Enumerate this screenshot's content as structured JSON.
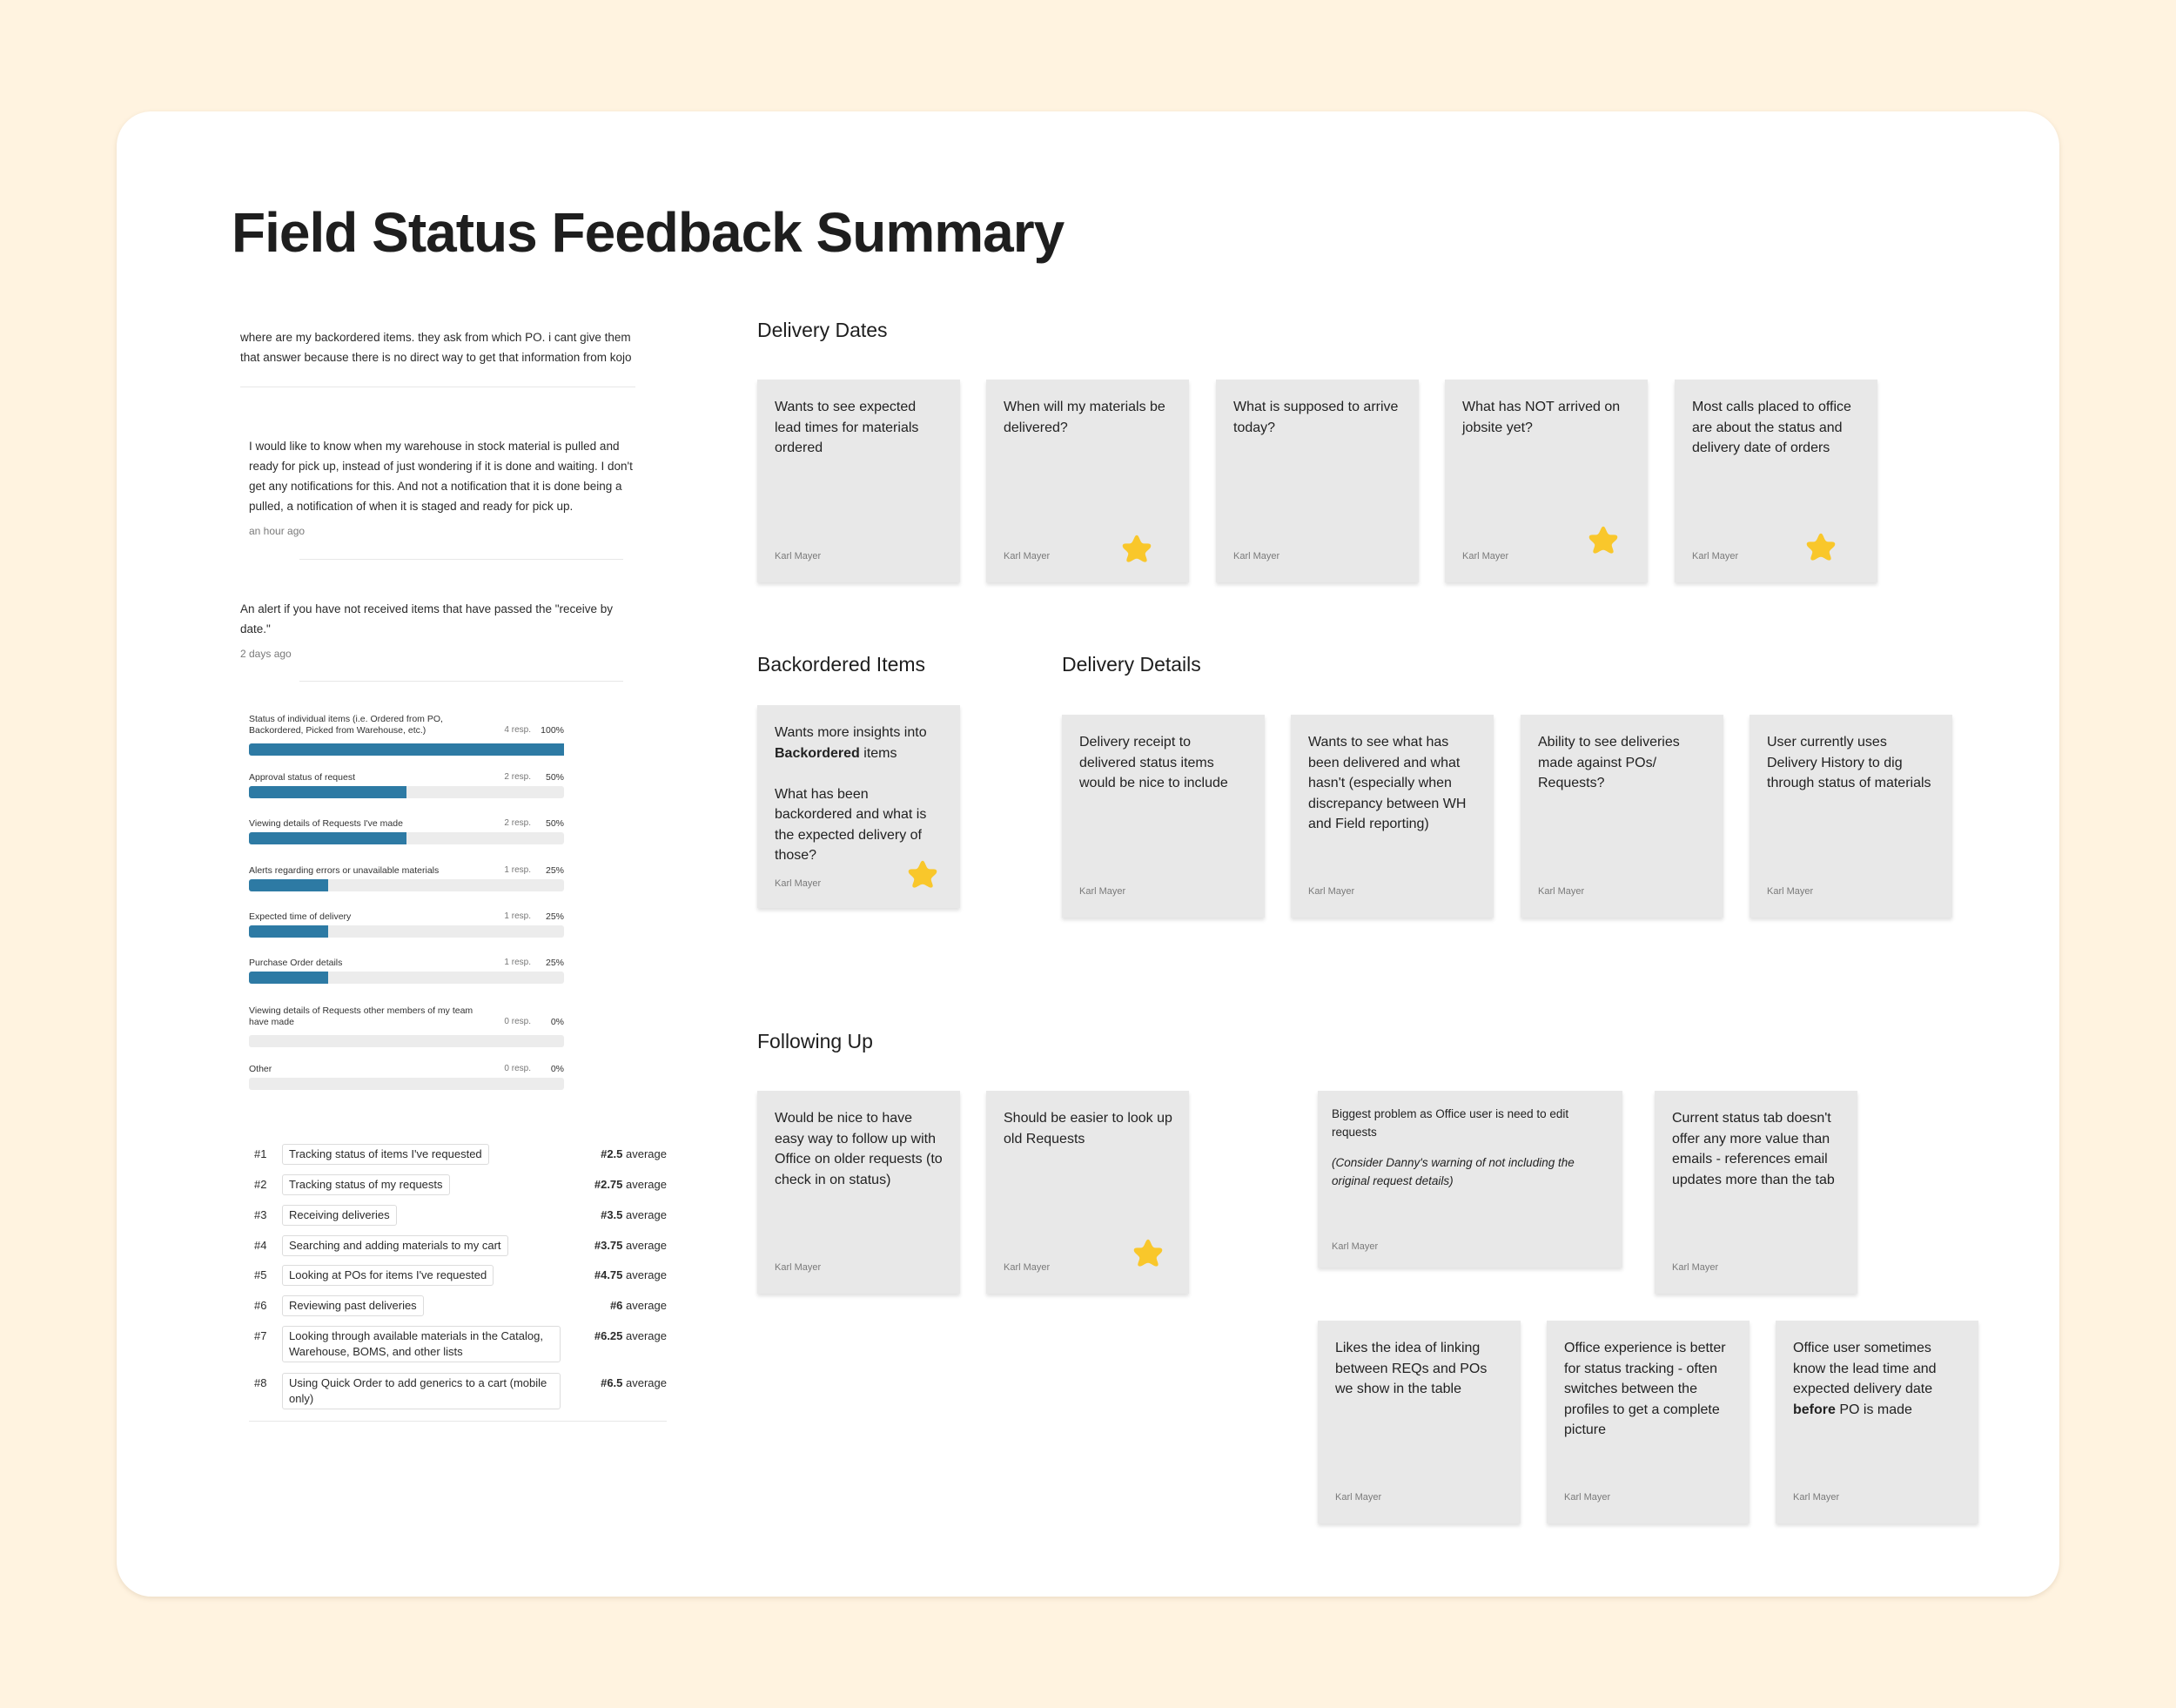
{
  "title": "Field Status Feedback Summary",
  "comments": [
    {
      "text": "where are my backordered items. they ask from which PO. i cant give them that answer because there is no direct way to get that information from kojo",
      "time": ""
    },
    {
      "text": "I would like to know when my warehouse in stock material is pulled and ready for pick up, instead of just wondering if it is done and waiting. I don't get any notifications for this. And not a notification that it is done being a pulled, a notification of when it is staged and ready for pick up.",
      "time": "an hour ago"
    },
    {
      "text": "An alert if you have not received items that have passed the \"receive by date.\"",
      "time": "2 days ago"
    }
  ],
  "poll": [
    {
      "label": "Status of individual items (i.e. Ordered from PO, Backordered, Picked from Warehouse, etc.)",
      "resp": "4 resp.",
      "pct": "100%",
      "value": 1.0
    },
    {
      "label": "Approval status of request",
      "resp": "2 resp.",
      "pct": "50%",
      "value": 0.5
    },
    {
      "label": "Viewing details of Requests I've made",
      "resp": "2 resp.",
      "pct": "50%",
      "value": 0.5
    },
    {
      "label": "Alerts regarding errors or unavailable materials",
      "resp": "1 resp.",
      "pct": "25%",
      "value": 0.25
    },
    {
      "label": "Expected time of delivery",
      "resp": "1 resp.",
      "pct": "25%",
      "value": 0.25
    },
    {
      "label": "Purchase Order details",
      "resp": "1 resp.",
      "pct": "25%",
      "value": 0.25
    },
    {
      "label": "Viewing details of Requests other members of my team have made",
      "resp": "0 resp.",
      "pct": "0%",
      "value": 0
    },
    {
      "label": "Other",
      "resp": "0 resp.",
      "pct": "0%",
      "value": 0
    }
  ],
  "ranking": [
    {
      "num": "#1",
      "label": "Tracking status of items I've requested",
      "avg": "#2.5",
      "suffix": " average"
    },
    {
      "num": "#2",
      "label": "Tracking status of my requests",
      "avg": "#2.75",
      "suffix": " average"
    },
    {
      "num": "#3",
      "label": "Receiving deliveries",
      "avg": "#3.5",
      "suffix": " average"
    },
    {
      "num": "#4",
      "label": "Searching and adding materials to my cart",
      "avg": "#3.75",
      "suffix": " average"
    },
    {
      "num": "#5",
      "label": "Looking at POs for items I've requested",
      "avg": "#4.75",
      "suffix": " average"
    },
    {
      "num": "#6",
      "label": "Reviewing past deliveries",
      "avg": "#6",
      "suffix": " average"
    },
    {
      "num": "#7",
      "label": "Looking through available materials in the Catalog, Warehouse, BOMS, and other lists",
      "avg": "#6.25",
      "suffix": " average"
    },
    {
      "num": "#8",
      "label": "Using Quick Order to add generics to a cart (mobile only)",
      "avg": "#6.5",
      "suffix": " average"
    }
  ],
  "sections": {
    "delivery_dates": "Delivery Dates",
    "backordered": "Backordered Items",
    "delivery_details": "Delivery Details",
    "following_up": "Following Up"
  },
  "notes": {
    "dd1": {
      "text": "Wants to see expected lead times for materials ordered",
      "author": "Karl Mayer"
    },
    "dd2": {
      "text": "When will my materials be delivered?",
      "author": "Karl Mayer"
    },
    "dd3": {
      "text": "What is supposed to arrive today?",
      "author": "Karl Mayer"
    },
    "dd4": {
      "text": "What has NOT arrived on jobsite yet?",
      "author": "Karl Mayer"
    },
    "dd5": {
      "text": "Most calls placed to office are about the status and delivery date of orders",
      "author": "Karl Mayer"
    },
    "bo1": {
      "text_a": "Wants more insights into ",
      "bold": "Backordered",
      "text_b": " items",
      "text_c": "What has been backordered and what is the expected delivery of those?",
      "author": "Karl Mayer"
    },
    "det1": {
      "text": "Delivery receipt to delivered status items would be nice to include",
      "author": "Karl Mayer"
    },
    "det2": {
      "text": "Wants to see what has been delivered and what hasn't (especially when discrepancy between WH and Field reporting)",
      "author": "Karl Mayer"
    },
    "det3": {
      "text": "Ability to see deliveries made against POs/ Requests?",
      "author": "Karl Mayer"
    },
    "det4": {
      "text": "User currently uses Delivery History to dig through status of materials",
      "author": "Karl Mayer"
    },
    "fu1": {
      "text": "Would be nice to have easy way to follow up with Office on older requests (to check in on status)",
      "author": "Karl Mayer"
    },
    "fu2": {
      "text": "Should be easier to look up old Requests",
      "author": "Karl Mayer"
    },
    "fu3": {
      "text": "Biggest problem as Office user is need to edit requests",
      "sub": "(Consider Danny's warning of not including the original request details)",
      "author": "Karl Mayer"
    },
    "fu4": {
      "text": "Current status tab doesn't offer any more value than emails - references email updates more than the tab",
      "author": "Karl Mayer"
    },
    "fu5": {
      "text": "Likes the idea of linking between REQs and POs we show in the table",
      "author": "Karl Mayer"
    },
    "fu6": {
      "text": "Office experience is better for status tracking - often switches between the profiles to get a complete picture",
      "author": "Karl Mayer"
    },
    "fu7": {
      "text_a": "Office user sometimes know the lead time and expected delivery date ",
      "bold": "before",
      "text_b": " PO is made",
      "author": "Karl Mayer"
    }
  },
  "colors": {
    "background": "#fff3e0",
    "board": "#ffffff",
    "sticky": "#e8e8e8",
    "bar": "#2d7aa4",
    "star": "#f9c72b"
  }
}
